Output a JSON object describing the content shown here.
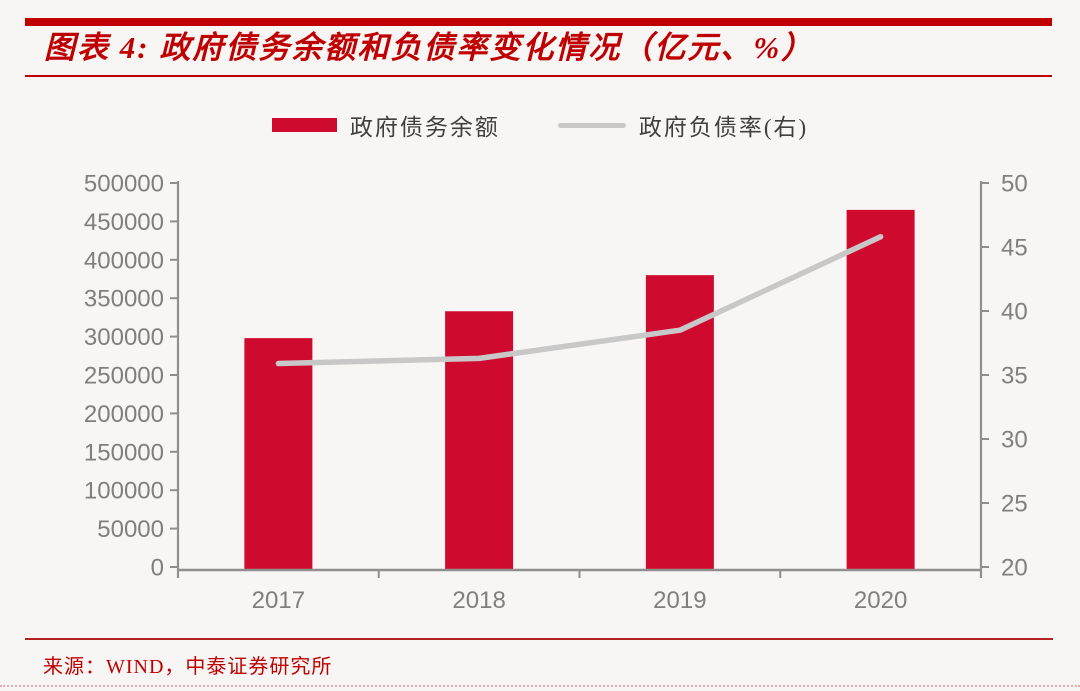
{
  "header": {
    "figure_label": "图表 4:",
    "title": "图表 4: 政府债务余额和负债率变化情况（亿元、%）"
  },
  "legend": [
    {
      "label": "政府债务余额",
      "swatch": "bar-swatch",
      "color": "#CF0A2F"
    },
    {
      "label": "政府负债率(右)",
      "swatch": "line-swatch",
      "color": "#C8C8C8"
    }
  ],
  "chart_data": {
    "type": "bar+line",
    "categories": [
      "2017",
      "2018",
      "2019",
      "2020"
    ],
    "series": [
      {
        "name": "政府债务余额",
        "type": "bar",
        "axis": "left",
        "unit": "亿元",
        "values": [
          298000,
          333000,
          380000,
          465000
        ],
        "color": "#CF0A2F"
      },
      {
        "name": "政府负债率(右)",
        "type": "line",
        "axis": "right",
        "unit": "%",
        "values": [
          35.9,
          36.3,
          38.5,
          45.8
        ],
        "color": "#C8C8C8"
      }
    ],
    "y_left": {
      "min": 0,
      "max": 500000,
      "step": 50000,
      "ticks": [
        0,
        50000,
        100000,
        150000,
        200000,
        250000,
        300000,
        350000,
        400000,
        450000,
        500000
      ]
    },
    "y_right": {
      "min": 20,
      "max": 50,
      "step": 5,
      "ticks": [
        20,
        25,
        30,
        35,
        40,
        45,
        50
      ]
    },
    "grid": false,
    "legend_position": "top-center"
  },
  "footer": {
    "source": "来源：WIND，中泰证券研究所"
  },
  "colors": {
    "accent_red": "#C00000",
    "bar_red": "#CF0A2F",
    "line_gray": "#C8C8C8",
    "axis_gray": "#8F8F8F",
    "tick_label_gray": "#7F7F7F",
    "footer_rule_red": "#B22222",
    "dotted_pink": "#E3ABAB",
    "legend_text": "#3F3F3F",
    "background": "#F7F6F4"
  }
}
